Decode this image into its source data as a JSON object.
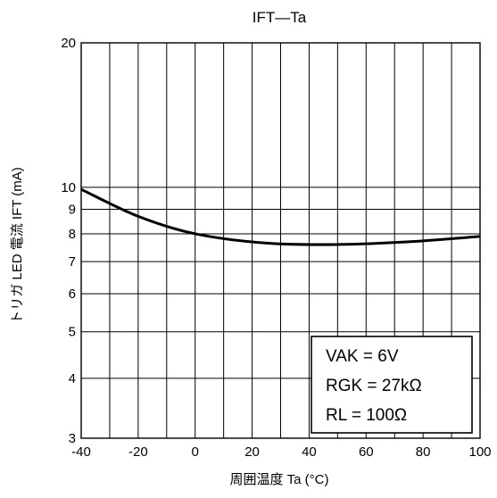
{
  "chart_data": {
    "type": "line",
    "title": "IFT—Ta",
    "xlabel": "周囲温度  Ta (°C)",
    "ylabel": "トリガ LED 電流  IFT (mA)",
    "xlim": [
      -40,
      100
    ],
    "ylim": [
      3,
      20
    ],
    "y_scale": "log",
    "grid": true,
    "x_ticks": [
      "-40",
      "-20",
      "0",
      "20",
      "40",
      "60",
      "80",
      "100"
    ],
    "y_ticks": [
      "3",
      "4",
      "5",
      "6",
      "7",
      "8",
      "9",
      "10",
      "20"
    ],
    "series": [
      {
        "x": [
          -40,
          -20,
          0,
          25,
          50,
          75,
          100
        ],
        "y": [
          9.9,
          8.7,
          8.0,
          7.65,
          7.6,
          7.7,
          7.9
        ]
      }
    ],
    "conditions": [
      "VAK = 6V",
      "RGK = 27kΩ",
      "RL = 100Ω"
    ]
  }
}
